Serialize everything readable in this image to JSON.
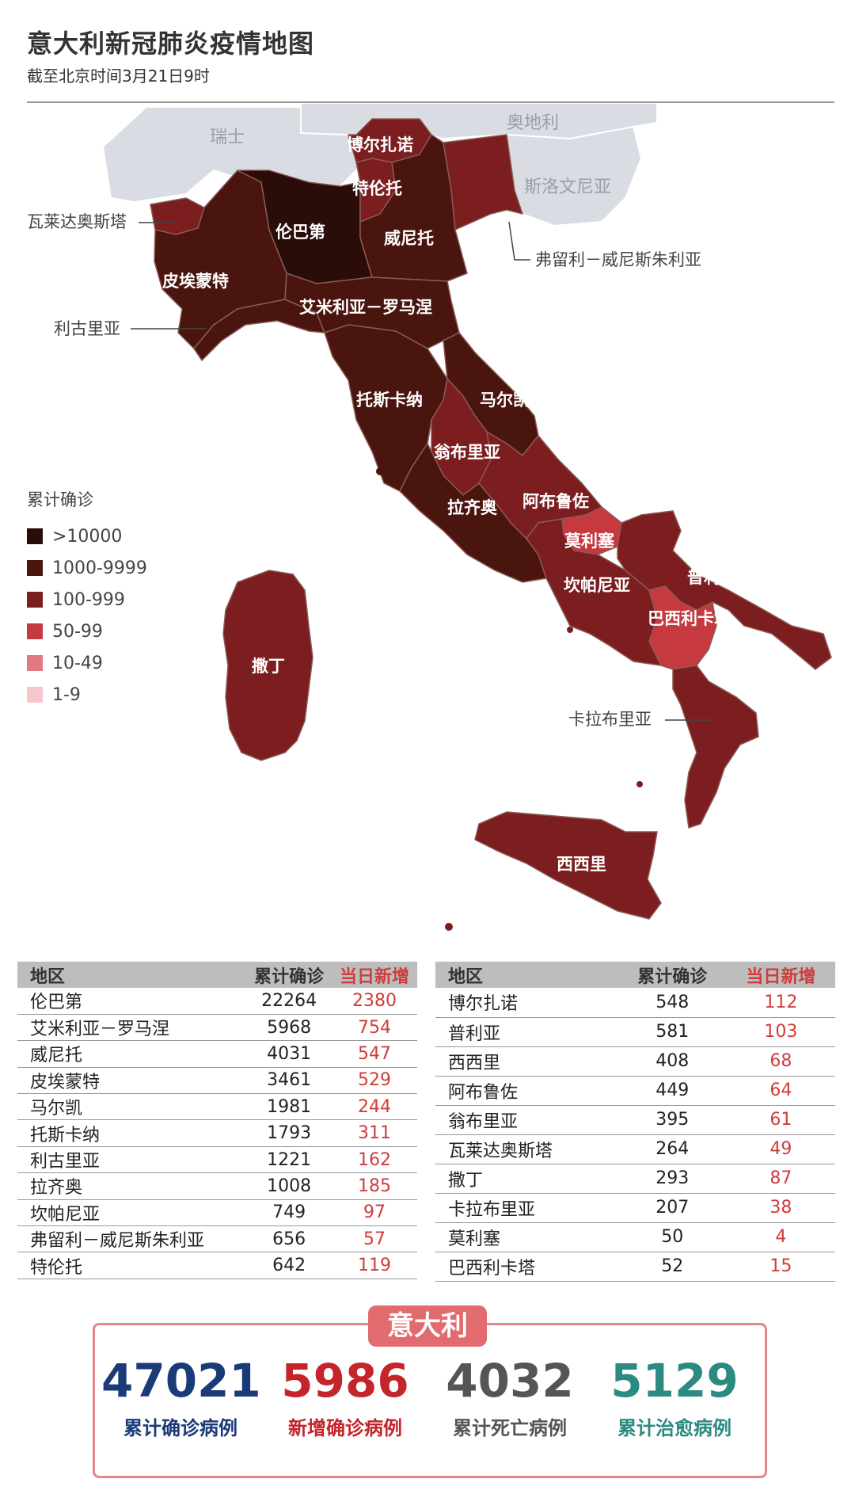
{
  "title": "意大利新冠肺炎疫情地图",
  "subtitle": "截至北京时间3月21日9时",
  "colors": {
    "gt10000": "#2a0c08",
    "c1000": "#4a140f",
    "c100": "#7c1d1f",
    "c50": "#c5393f",
    "c10": "#e07a80",
    "c1": "#f7c6cc",
    "neighbor": "#d9dce3",
    "accent_red": "#d03c3c",
    "confirmed_blue": "#1b3a78",
    "new_red": "#c4242a",
    "death_gray": "#555555",
    "cured_teal": "#2c8a80"
  },
  "map": {
    "neighbors": {
      "switzerland": "瑞士",
      "austria": "奥地利",
      "slovenia": "斯洛文尼亚"
    },
    "regions": {
      "bolzano": "博尔扎诺",
      "trento": "特伦托",
      "lombardia": "伦巴第",
      "veneto": "威尼托",
      "piemonte": "皮埃蒙特",
      "emilia": "艾米利亚－罗马涅",
      "toscana": "托斯卡纳",
      "marche": "马尔凯",
      "umbria": "翁布里亚",
      "lazio": "拉齐奥",
      "abruzzo": "阿布鲁佐",
      "molise": "莫利塞",
      "campania": "坎帕尼亚",
      "puglia": "普利亚",
      "basilicata": "巴西利卡塔",
      "sardegna": "撒丁",
      "sicilia": "西西里"
    },
    "callouts": {
      "valle_daosta": "瓦莱达奥斯塔",
      "liguria": "利古里亚",
      "friuli": "弗留利－威尼斯朱利亚",
      "calabria": "卡拉布里亚"
    }
  },
  "legend": {
    "title": "累计确诊",
    "items": [
      {
        "label": ">10000",
        "color": "#2a0c08"
      },
      {
        "label": "1000-9999",
        "color": "#4a140f"
      },
      {
        "label": "100-999",
        "color": "#7c1d1f"
      },
      {
        "label": "50-99",
        "color": "#c5393f"
      },
      {
        "label": "10-49",
        "color": "#e07a80"
      },
      {
        "label": "1-9",
        "color": "#f7c6cc"
      }
    ]
  },
  "table": {
    "headers": {
      "region": "地区",
      "total": "累计确诊",
      "new": "当日新增"
    },
    "left": [
      {
        "region": "伦巴第",
        "total": "22264",
        "new": "2380"
      },
      {
        "region": "艾米利亚－罗马涅",
        "total": "5968",
        "new": "754"
      },
      {
        "region": "威尼托",
        "total": "4031",
        "new": "547"
      },
      {
        "region": "皮埃蒙特",
        "total": "3461",
        "new": "529"
      },
      {
        "region": "马尔凯",
        "total": "1981",
        "new": "244"
      },
      {
        "region": "托斯卡纳",
        "total": "1793",
        "new": "311"
      },
      {
        "region": "利古里亚",
        "total": "1221",
        "new": "162"
      },
      {
        "region": "拉齐奥",
        "total": "1008",
        "new": "185"
      },
      {
        "region": "坎帕尼亚",
        "total": "749",
        "new": "97"
      },
      {
        "region": "弗留利－威尼斯朱利亚",
        "total": "656",
        "new": "57"
      },
      {
        "region": "特伦托",
        "total": "642",
        "new": "119"
      }
    ],
    "right": [
      {
        "region": "博尔扎诺",
        "total": "548",
        "new": "112"
      },
      {
        "region": "普利亚",
        "total": "581",
        "new": "103"
      },
      {
        "region": "西西里",
        "total": "408",
        "new": "68"
      },
      {
        "region": "阿布鲁佐",
        "total": "449",
        "new": "64"
      },
      {
        "region": "翁布里亚",
        "total": "395",
        "new": "61"
      },
      {
        "region": "瓦莱达奥斯塔",
        "total": "264",
        "new": "49"
      },
      {
        "region": "撒丁",
        "total": "293",
        "new": "87"
      },
      {
        "region": "卡拉布里亚",
        "total": "207",
        "new": "38"
      },
      {
        "region": "莫利塞",
        "total": "50",
        "new": "4"
      },
      {
        "region": "巴西利卡塔",
        "total": "52",
        "new": "15"
      }
    ]
  },
  "summary": {
    "tag": "意大利",
    "confirmed": {
      "value": "47021",
      "label": "累计确诊病例"
    },
    "new": {
      "value": "5986",
      "label": "新增确诊病例"
    },
    "deaths": {
      "value": "4032",
      "label": "累计死亡病例"
    },
    "cured": {
      "value": "5129",
      "label": "累计治愈病例"
    }
  }
}
